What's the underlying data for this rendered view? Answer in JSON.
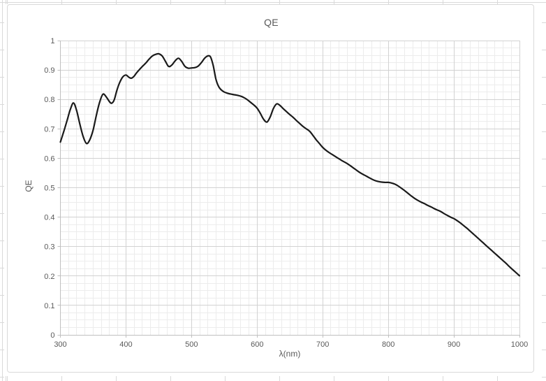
{
  "colors": {
    "curve": "#1a1a1a",
    "grid_major": "#d2d2d2",
    "grid_minor": "#ececec",
    "axis_line": "#bfbfbf",
    "text": "#595959",
    "chart_border": "#d9d9d9",
    "worksheet_grid": "#d9d9d9"
  },
  "chart": {
    "title": "QE",
    "x_axis_title": "λ(nm)",
    "y_axis_title": "QE",
    "x_tick_labels": [
      "300",
      "400",
      "500",
      "600",
      "700",
      "800",
      "900",
      "1000"
    ],
    "y_tick_labels": [
      "0",
      "0.1",
      "0.2",
      "0.3",
      "0.4",
      "0.5",
      "0.6",
      "0.7",
      "0.8",
      "0.9",
      "1"
    ]
  },
  "chart_data": {
    "type": "line",
    "title": "QE",
    "xlabel": "λ(nm)",
    "ylabel": "QE",
    "xlim": [
      300,
      1000
    ],
    "ylim": [
      0,
      1
    ],
    "x_major_unit": 100,
    "x_minor_unit": 12.5,
    "y_major_unit": 0.1,
    "y_minor_unit": 0.025,
    "grid": "major+minor",
    "legend": "none",
    "series": [
      {
        "name": "QE",
        "color": "#1a1a1a",
        "points": [
          [
            300,
            0.655
          ],
          [
            305,
            0.69
          ],
          [
            310,
            0.727
          ],
          [
            315,
            0.765
          ],
          [
            320,
            0.788
          ],
          [
            325,
            0.76
          ],
          [
            330,
            0.713
          ],
          [
            335,
            0.672
          ],
          [
            340,
            0.65
          ],
          [
            345,
            0.664
          ],
          [
            350,
            0.697
          ],
          [
            355,
            0.748
          ],
          [
            360,
            0.792
          ],
          [
            365,
            0.818
          ],
          [
            370,
            0.808
          ],
          [
            375,
            0.792
          ],
          [
            378,
            0.787
          ],
          [
            382,
            0.798
          ],
          [
            386,
            0.83
          ],
          [
            390,
            0.855
          ],
          [
            395,
            0.876
          ],
          [
            400,
            0.883
          ],
          [
            404,
            0.876
          ],
          [
            408,
            0.872
          ],
          [
            412,
            0.878
          ],
          [
            416,
            0.89
          ],
          [
            420,
            0.9
          ],
          [
            425,
            0.912
          ],
          [
            430,
            0.923
          ],
          [
            435,
            0.936
          ],
          [
            440,
            0.947
          ],
          [
            445,
            0.953
          ],
          [
            450,
            0.955
          ],
          [
            455,
            0.948
          ],
          [
            460,
            0.93
          ],
          [
            465,
            0.912
          ],
          [
            470,
            0.917
          ],
          [
            475,
            0.931
          ],
          [
            480,
            0.94
          ],
          [
            485,
            0.929
          ],
          [
            490,
            0.912
          ],
          [
            495,
            0.906
          ],
          [
            500,
            0.907
          ],
          [
            505,
            0.908
          ],
          [
            510,
            0.913
          ],
          [
            515,
            0.925
          ],
          [
            520,
            0.94
          ],
          [
            525,
            0.948
          ],
          [
            529,
            0.944
          ],
          [
            533,
            0.915
          ],
          [
            537,
            0.87
          ],
          [
            541,
            0.845
          ],
          [
            545,
            0.833
          ],
          [
            550,
            0.825
          ],
          [
            555,
            0.821
          ],
          [
            560,
            0.818
          ],
          [
            565,
            0.816
          ],
          [
            570,
            0.814
          ],
          [
            575,
            0.811
          ],
          [
            580,
            0.806
          ],
          [
            585,
            0.799
          ],
          [
            590,
            0.79
          ],
          [
            595,
            0.781
          ],
          [
            600,
            0.77
          ],
          [
            605,
            0.752
          ],
          [
            610,
            0.732
          ],
          [
            615,
            0.723
          ],
          [
            620,
            0.741
          ],
          [
            625,
            0.77
          ],
          [
            630,
            0.785
          ],
          [
            635,
            0.779
          ],
          [
            640,
            0.768
          ],
          [
            645,
            0.758
          ],
          [
            650,
            0.748
          ],
          [
            655,
            0.739
          ],
          [
            660,
            0.728
          ],
          [
            665,
            0.718
          ],
          [
            670,
            0.708
          ],
          [
            675,
            0.7
          ],
          [
            680,
            0.692
          ],
          [
            685,
            0.678
          ],
          [
            690,
            0.663
          ],
          [
            695,
            0.65
          ],
          [
            700,
            0.637
          ],
          [
            705,
            0.627
          ],
          [
            710,
            0.619
          ],
          [
            715,
            0.612
          ],
          [
            720,
            0.605
          ],
          [
            725,
            0.598
          ],
          [
            730,
            0.591
          ],
          [
            735,
            0.585
          ],
          [
            740,
            0.578
          ],
          [
            745,
            0.57
          ],
          [
            750,
            0.562
          ],
          [
            755,
            0.554
          ],
          [
            760,
            0.547
          ],
          [
            765,
            0.541
          ],
          [
            770,
            0.535
          ],
          [
            775,
            0.529
          ],
          [
            780,
            0.524
          ],
          [
            785,
            0.521
          ],
          [
            790,
            0.519
          ],
          [
            795,
            0.518
          ],
          [
            800,
            0.518
          ],
          [
            805,
            0.516
          ],
          [
            810,
            0.512
          ],
          [
            815,
            0.506
          ],
          [
            820,
            0.498
          ],
          [
            825,
            0.49
          ],
          [
            830,
            0.481
          ],
          [
            835,
            0.472
          ],
          [
            840,
            0.464
          ],
          [
            845,
            0.457
          ],
          [
            850,
            0.451
          ],
          [
            855,
            0.446
          ],
          [
            860,
            0.44
          ],
          [
            865,
            0.435
          ],
          [
            870,
            0.429
          ],
          [
            875,
            0.424
          ],
          [
            880,
            0.419
          ],
          [
            885,
            0.412
          ],
          [
            890,
            0.406
          ],
          [
            895,
            0.4
          ],
          [
            900,
            0.395
          ],
          [
            905,
            0.388
          ],
          [
            910,
            0.38
          ],
          [
            915,
            0.371
          ],
          [
            920,
            0.362
          ],
          [
            925,
            0.352
          ],
          [
            930,
            0.342
          ],
          [
            935,
            0.332
          ],
          [
            940,
            0.322
          ],
          [
            945,
            0.312
          ],
          [
            950,
            0.302
          ],
          [
            955,
            0.292
          ],
          [
            960,
            0.282
          ],
          [
            965,
            0.272
          ],
          [
            970,
            0.262
          ],
          [
            975,
            0.252
          ],
          [
            980,
            0.242
          ],
          [
            985,
            0.231
          ],
          [
            990,
            0.221
          ],
          [
            995,
            0.211
          ],
          [
            1000,
            0.201
          ]
        ]
      }
    ]
  }
}
